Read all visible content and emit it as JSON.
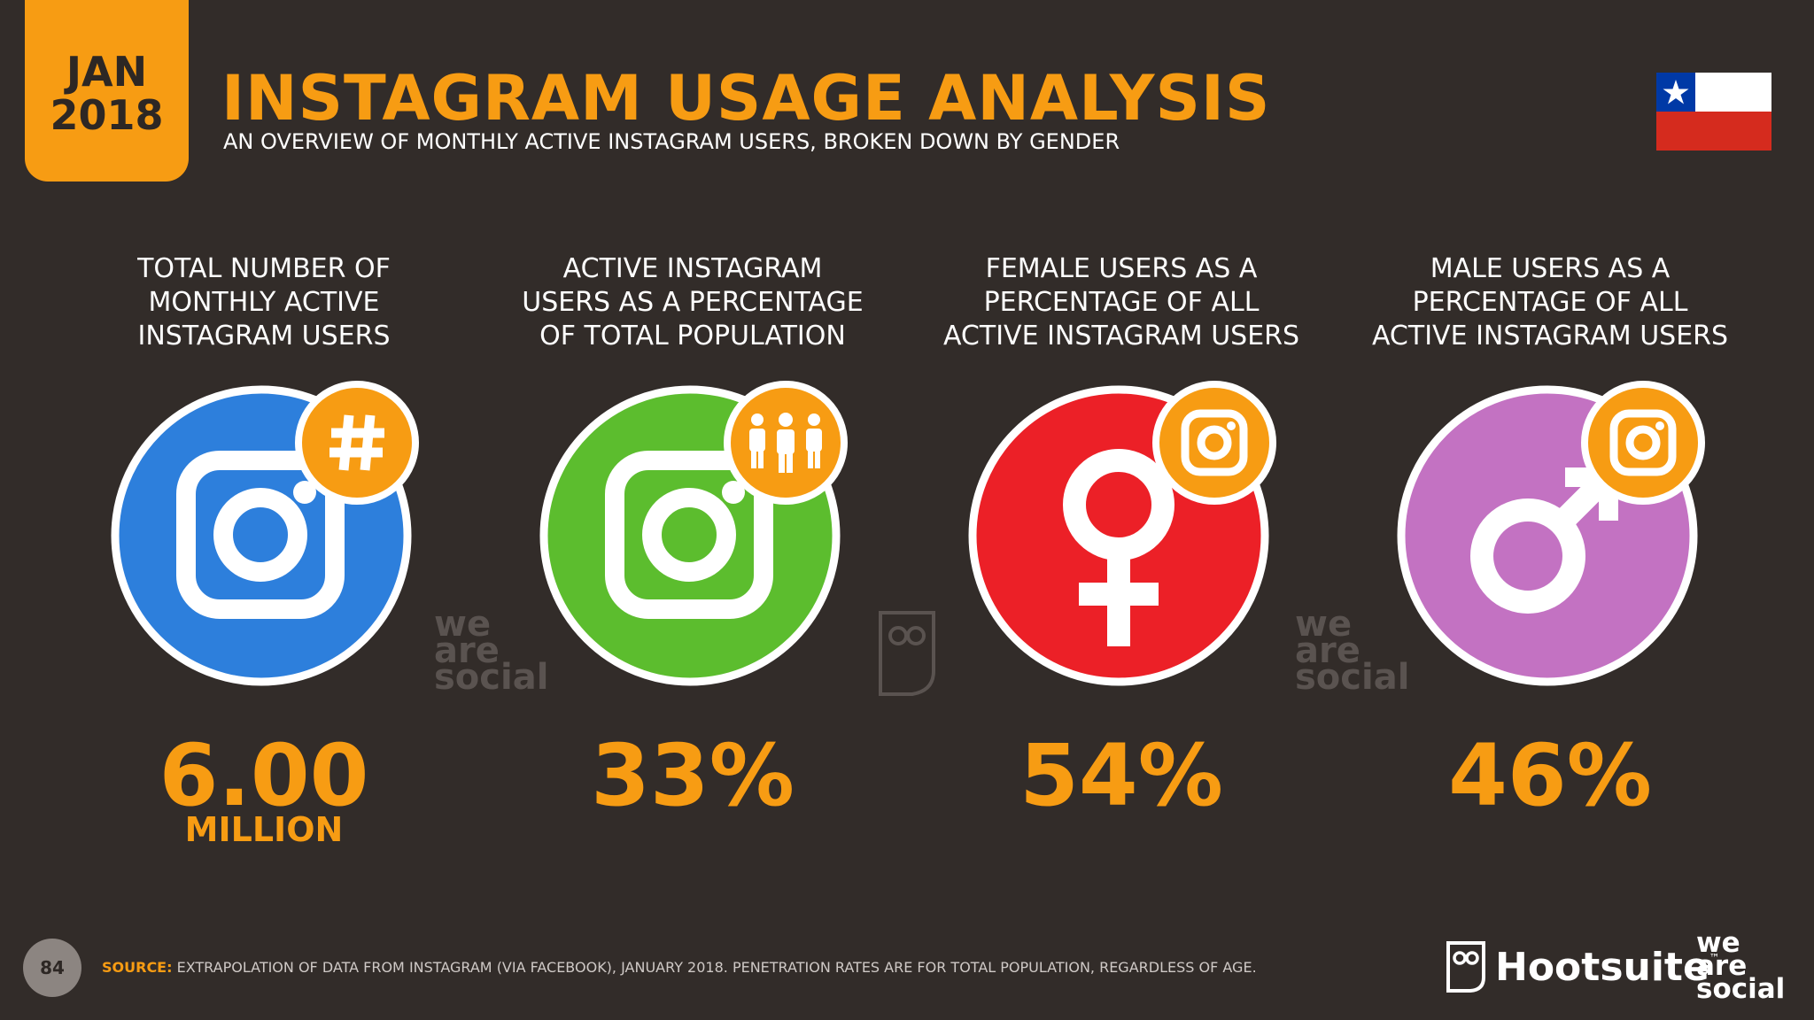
{
  "header": {
    "date_month": "JAN",
    "date_year": "2018",
    "title": "INSTAGRAM USAGE ANALYSIS",
    "subtitle": "AN OVERVIEW OF MONTHLY ACTIVE INSTAGRAM USERS, BROKEN DOWN BY GENDER"
  },
  "colors": {
    "background": "#322c29",
    "accent": "#f79c13",
    "blue": "#2d7fdc",
    "green": "#5cbd2e",
    "red": "#ec2027",
    "purple": "#c372c2"
  },
  "stats": [
    {
      "label_lines": [
        "TOTAL NUMBER OF",
        "MONTHLY ACTIVE",
        "INSTAGRAM USERS"
      ],
      "value": "6.00",
      "unit": "MILLION",
      "icon": "instagram-icon",
      "badge_icon": "hashtag-icon"
    },
    {
      "label_lines": [
        "ACTIVE INSTAGRAM",
        "USERS AS A PERCENTAGE",
        "OF TOTAL POPULATION"
      ],
      "value": "33%",
      "icon": "instagram-icon",
      "badge_icon": "people-icon"
    },
    {
      "label_lines": [
        "FEMALE USERS AS A",
        "PERCENTAGE OF ALL",
        "ACTIVE INSTAGRAM USERS"
      ],
      "value": "54%",
      "icon": "female-symbol-icon",
      "badge_icon": "instagram-icon"
    },
    {
      "label_lines": [
        "MALE USERS AS A",
        "PERCENTAGE OF ALL",
        "ACTIVE INSTAGRAM USERS"
      ],
      "value": "46%",
      "icon": "male-symbol-icon",
      "badge_icon": "instagram-icon"
    }
  ],
  "watermarks": {
    "we": "we",
    "are": "are",
    "social": "social"
  },
  "footer": {
    "page_number": "84",
    "source_key": "SOURCE:",
    "source_text": "EXTRAPOLATION OF DATA FROM INSTAGRAM (VIA FACEBOOK), JANUARY 2018. PENETRATION RATES ARE FOR TOTAL POPULATION, REGARDLESS OF AGE.",
    "brand_hootsuite": "Hootsuite",
    "brand_tm": "™",
    "brand_we": "we",
    "brand_are": "are",
    "brand_social": "social"
  }
}
